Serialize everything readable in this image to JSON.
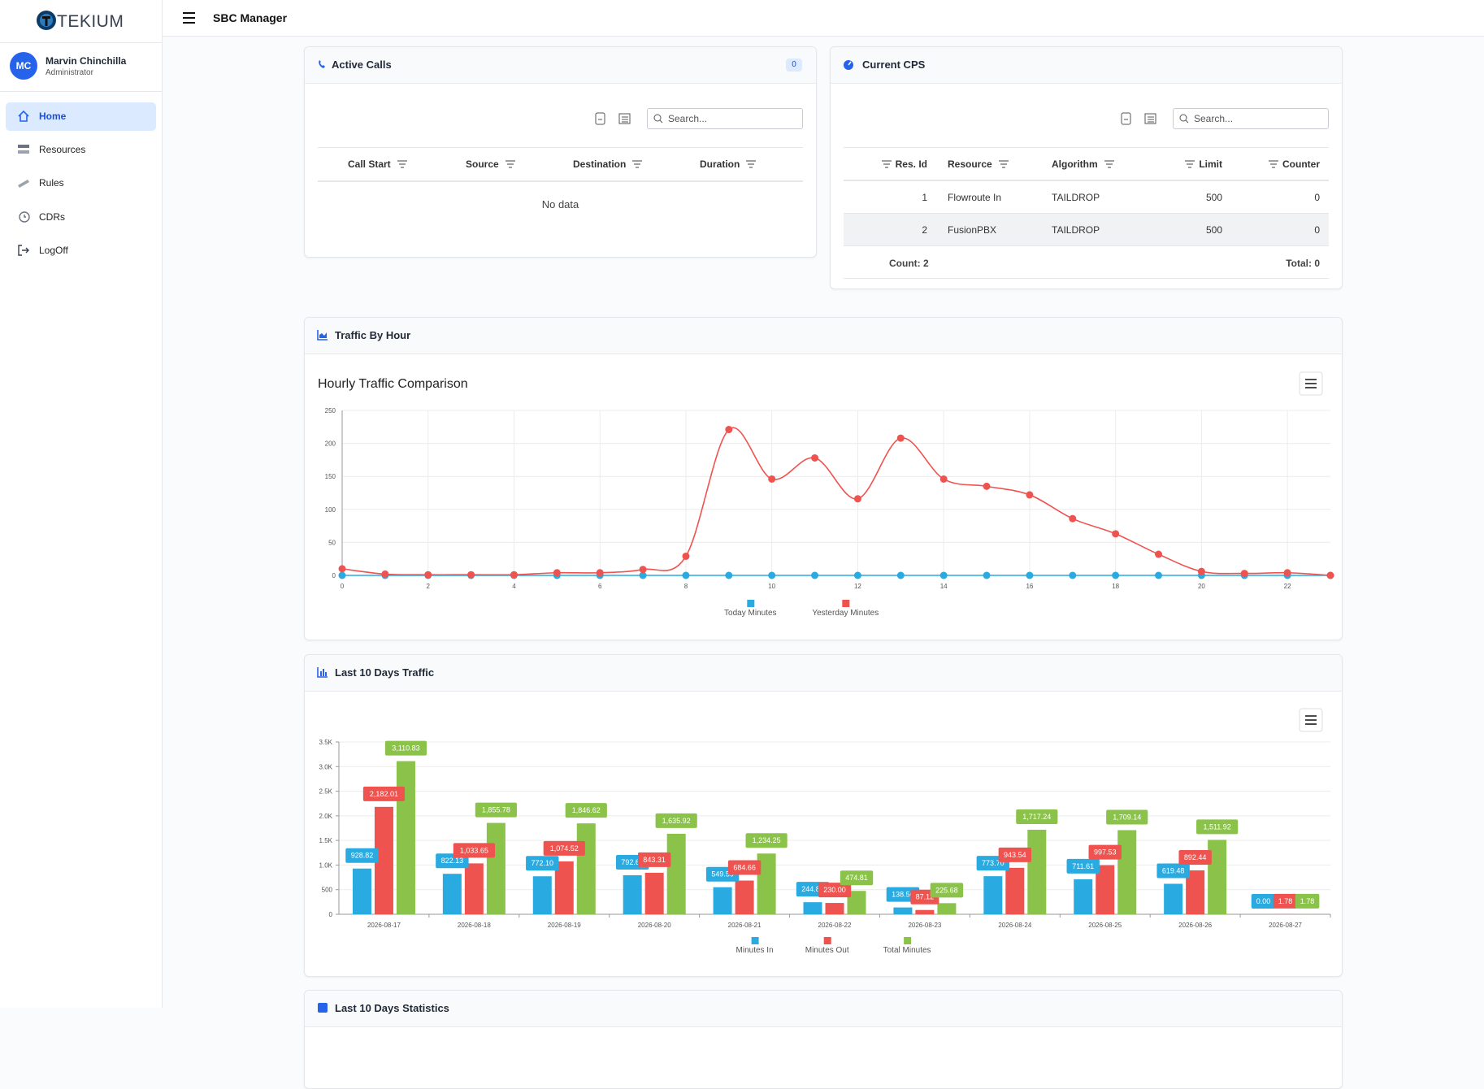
{
  "app": {
    "logo": "TEKIUM",
    "title": "SBC Manager"
  },
  "user": {
    "initials": "MC",
    "name": "Marvin Chinchilla",
    "role": "Administrator"
  },
  "nav": [
    "Home",
    "Resources",
    "Rules",
    "CDRs",
    "LogOff"
  ],
  "active_calls": {
    "title": "Active Calls",
    "count": 0,
    "search_placeholder": "Search...",
    "columns": [
      "Call Start",
      "Source",
      "Destination",
      "Duration"
    ],
    "empty": "No data"
  },
  "current_cps": {
    "title": "Current CPS",
    "search_placeholder": "Search...",
    "columns": [
      "Res. Id",
      "Resource",
      "Algorithm",
      "Limit",
      "Counter"
    ],
    "rows": [
      [
        1,
        "Flowroute In",
        "TAILDROP",
        500,
        0
      ],
      [
        2,
        "FusionPBX",
        "TAILDROP",
        500,
        0
      ]
    ],
    "footer": [
      "Count: 2",
      "Total: 0"
    ]
  },
  "panels": [
    "Traffic By Hour",
    "Last 10 Days Traffic",
    "Last 10 Days Statistics"
  ],
  "chart_data": [
    {
      "type": "line",
      "title": "Hourly Traffic Comparison",
      "x": [
        0,
        1,
        2,
        3,
        4,
        5,
        6,
        7,
        8,
        9,
        10,
        11,
        12,
        13,
        14,
        15,
        16,
        17,
        18,
        19,
        20,
        21,
        22,
        23
      ],
      "xlim": [
        0,
        23
      ],
      "xticks": [
        0,
        2,
        4,
        6,
        8,
        10,
        12,
        14,
        16,
        18,
        20,
        22
      ],
      "ylim": [
        0,
        250
      ],
      "yticks": [
        0,
        50,
        100,
        150,
        200,
        250
      ],
      "grid": true,
      "legend": "bottom",
      "series": [
        {
          "name": "Today Minutes",
          "color": "#29abe2",
          "values": [
            0,
            0,
            0,
            0,
            0,
            0,
            0,
            0,
            0,
            0,
            0,
            0,
            0,
            0,
            0,
            0,
            0,
            0,
            0,
            0,
            0,
            0,
            0,
            0
          ]
        },
        {
          "name": "Yesterday Minutes",
          "color": "#ef5350",
          "values": [
            10,
            2,
            1,
            1,
            1,
            4,
            4,
            9,
            29,
            221,
            146,
            178,
            116,
            208,
            146,
            135,
            122,
            86,
            63,
            32,
            6,
            3,
            4,
            0
          ]
        }
      ]
    },
    {
      "type": "bar",
      "categories": [
        "2026-08-17",
        "2026-08-18",
        "2026-08-19",
        "2026-08-20",
        "2026-08-21",
        "2026-08-22",
        "2026-08-23",
        "2026-08-24",
        "2026-08-25",
        "2026-08-26",
        "2026-08-27"
      ],
      "ylim": [
        0,
        3500
      ],
      "yticks": [
        0,
        500,
        {
          "value": 1000,
          "label": "1.0K"
        },
        {
          "value": 1500,
          "label": "1.5K"
        },
        {
          "value": 2000,
          "label": "2.0K"
        },
        {
          "value": 2500,
          "label": "2.5K"
        },
        {
          "value": 3000,
          "label": "3.0K"
        },
        {
          "value": 3500,
          "label": "3.5K"
        }
      ],
      "grid": true,
      "legend": "bottom",
      "series": [
        {
          "name": "Minutes In",
          "color": "#29abe2",
          "values": [
            928.82,
            822.13,
            772.1,
            792.61,
            549.59,
            244.81,
            138.56,
            773.7,
            711.61,
            619.48,
            0.0
          ],
          "value_labels": [
            "928.82",
            "822.13",
            "772.10",
            "792.61",
            "549.59",
            "244.81",
            "138.56",
            "773.70",
            "711.61",
            "619.48",
            "0.00"
          ]
        },
        {
          "name": "Minutes Out",
          "color": "#ef5350",
          "values": [
            2182.01,
            1033.65,
            1074.52,
            843.31,
            684.66,
            230.0,
            87.12,
            943.54,
            997.53,
            892.44,
            1.78
          ],
          "value_labels": [
            "2,182.01",
            "1,033.65",
            "1,074.52",
            "843.31",
            "684.66",
            "230.00",
            "87.12",
            "943.54",
            "997.53",
            "892.44",
            "1.78"
          ]
        },
        {
          "name": "Total Minutes",
          "color": "#8bc34a",
          "values": [
            3110.83,
            1855.78,
            1846.62,
            1635.92,
            1234.25,
            474.81,
            225.68,
            1717.24,
            1709.14,
            1511.92,
            1.78
          ],
          "value_labels": [
            "3,110.83",
            "1,855.78",
            "1,846.62",
            "1,635.92",
            "1,234.25",
            "474.81",
            "225.68",
            "1,717.24",
            "1,709.14",
            "1,511.92",
            "1.78"
          ]
        }
      ]
    }
  ]
}
